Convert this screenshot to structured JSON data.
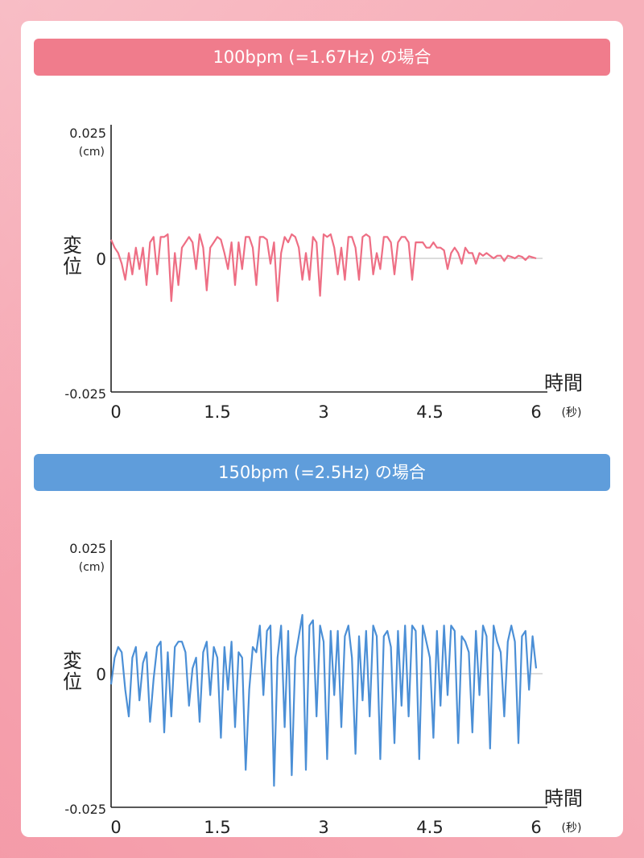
{
  "chart_data": [
    {
      "type": "line",
      "title": "100bpm (=1.67Hz) の場合",
      "ylabel": "変位",
      "yunit": "(cm)",
      "xlabel": "時間",
      "xunit": "(秒)",
      "xlim": [
        0,
        6
      ],
      "ylim": [
        -0.025,
        0.025
      ],
      "xticks": [
        "0",
        "1.5",
        "3",
        "4.5",
        "6"
      ],
      "yticks": [
        "0.025",
        "0",
        "-0.025"
      ],
      "color": "#ee6e84",
      "series": [
        {
          "x": [
            0,
            0.05,
            0.1,
            0.15,
            0.2,
            0.25,
            0.3,
            0.35,
            0.4,
            0.45,
            0.5,
            0.55,
            0.6,
            0.65,
            0.7,
            0.75,
            0.8,
            0.85,
            0.9,
            0.95,
            1.0,
            1.05,
            1.1,
            1.15,
            1.2,
            1.25,
            1.3,
            1.35,
            1.4,
            1.45,
            1.5,
            1.55,
            1.6,
            1.65,
            1.7,
            1.75,
            1.8,
            1.85,
            1.9,
            1.95,
            2.0,
            2.05,
            2.1,
            2.15,
            2.2,
            2.25,
            2.3,
            2.35,
            2.4,
            2.45,
            2.5,
            2.55,
            2.6,
            2.65,
            2.7,
            2.75,
            2.8,
            2.85,
            2.9,
            2.95,
            3.0,
            3.05,
            3.1,
            3.15,
            3.2,
            3.25,
            3.3,
            3.35,
            3.4,
            3.45,
            3.5,
            3.55,
            3.6,
            3.65,
            3.7,
            3.75,
            3.8,
            3.85,
            3.9,
            3.95,
            4.0,
            4.05,
            4.1,
            4.15,
            4.2,
            4.25,
            4.3,
            4.35,
            4.4,
            4.45,
            4.5,
            4.55,
            4.6,
            4.65,
            4.7,
            4.75,
            4.8,
            4.85,
            4.9,
            4.95,
            5.0,
            5.05,
            5.1,
            5.15,
            5.2,
            5.25,
            5.3,
            5.35,
            5.4,
            5.45,
            5.5,
            5.55,
            5.6,
            5.65,
            5.7,
            5.75,
            5.8,
            5.85,
            5.9,
            5.95,
            6.0
          ],
          "y": [
            0.0035,
            0.002,
            0.001,
            -0.001,
            -0.004,
            0.001,
            -0.003,
            0.002,
            -0.002,
            0.002,
            -0.005,
            0.003,
            0.004,
            -0.003,
            0.004,
            0.004,
            0.0045,
            -0.008,
            0.001,
            -0.005,
            0.002,
            0.003,
            0.004,
            0.003,
            -0.002,
            0.0045,
            0.002,
            -0.006,
            0.002,
            0.003,
            0.004,
            0.0035,
            0.001,
            -0.002,
            0.003,
            -0.005,
            0.003,
            -0.002,
            0.004,
            0.004,
            0.002,
            -0.005,
            0.004,
            0.004,
            0.0035,
            -0.001,
            0.003,
            -0.008,
            0.001,
            0.004,
            0.003,
            0.0045,
            0.004,
            0.002,
            -0.004,
            0.001,
            -0.004,
            0.004,
            0.003,
            -0.007,
            0.0045,
            0.004,
            0.0045,
            0.002,
            -0.003,
            0.002,
            -0.004,
            0.004,
            0.004,
            0.002,
            -0.004,
            0.004,
            0.0045,
            0.004,
            -0.003,
            0.001,
            -0.002,
            0.004,
            0.004,
            0.003,
            -0.003,
            0.003,
            0.004,
            0.004,
            0.003,
            -0.004,
            0.003,
            0.003,
            0.003,
            0.002,
            0.002,
            0.003,
            0.002,
            0.002,
            0.0015,
            -0.002,
            0.001,
            0.002,
            0.001,
            -0.001,
            0.002,
            0.001,
            0.001,
            -0.001,
            0.001,
            0.0005,
            0.001,
            0.0005,
            0.0,
            0.0005,
            0.0005,
            -0.0005,
            0.0005,
            0.0003,
            0.0,
            0.0005,
            0.0003,
            -0.0003,
            0.0004,
            0.0002,
            0.0
          ]
        }
      ]
    },
    {
      "type": "line",
      "title": "150bpm (=2.5Hz) の場合",
      "ylabel": "変位",
      "yunit": "(cm)",
      "xlabel": "時間",
      "xunit": "(秒)",
      "xlim": [
        0,
        6
      ],
      "ylim": [
        -0.025,
        0.025
      ],
      "xticks": [
        "0",
        "1.5",
        "3",
        "4.5",
        "6"
      ],
      "yticks": [
        "0.025",
        "0",
        "-0.025"
      ],
      "color": "#4b8fd6",
      "series": [
        {
          "x": [
            0,
            0.05,
            0.1,
            0.15,
            0.2,
            0.25,
            0.3,
            0.35,
            0.4,
            0.45,
            0.5,
            0.55,
            0.6,
            0.65,
            0.7,
            0.75,
            0.8,
            0.85,
            0.9,
            0.95,
            1.0,
            1.05,
            1.1,
            1.15,
            1.2,
            1.25,
            1.3,
            1.35,
            1.4,
            1.45,
            1.5,
            1.55,
            1.6,
            1.65,
            1.7,
            1.75,
            1.8,
            1.85,
            1.9,
            1.95,
            2.0,
            2.05,
            2.1,
            2.15,
            2.2,
            2.25,
            2.3,
            2.35,
            2.4,
            2.45,
            2.5,
            2.55,
            2.6,
            2.65,
            2.7,
            2.75,
            2.8,
            2.85,
            2.9,
            2.95,
            3.0,
            3.05,
            3.1,
            3.15,
            3.2,
            3.25,
            3.3,
            3.35,
            3.4,
            3.45,
            3.5,
            3.55,
            3.6,
            3.65,
            3.7,
            3.75,
            3.8,
            3.85,
            3.9,
            3.95,
            4.0,
            4.05,
            4.1,
            4.15,
            4.2,
            4.25,
            4.3,
            4.35,
            4.4,
            4.45,
            4.5,
            4.55,
            4.6,
            4.65,
            4.7,
            4.75,
            4.8,
            4.85,
            4.9,
            4.95,
            5.0,
            5.05,
            5.1,
            5.15,
            5.2,
            5.25,
            5.3,
            5.35,
            5.4,
            5.45,
            5.5,
            5.55,
            5.6,
            5.65,
            5.7,
            5.75,
            5.8,
            5.85,
            5.9,
            5.95,
            6.0
          ],
          "y": [
            -0.002,
            0.003,
            0.005,
            0.004,
            -0.003,
            -0.008,
            0.003,
            0.005,
            -0.005,
            0.002,
            0.004,
            -0.009,
            -0.001,
            0.005,
            0.006,
            -0.011,
            0.004,
            -0.008,
            0.005,
            0.006,
            0.006,
            0.004,
            -0.006,
            0.001,
            0.003,
            -0.009,
            0.004,
            0.006,
            -0.004,
            0.005,
            0.003,
            -0.012,
            0.005,
            -0.003,
            0.006,
            -0.01,
            0.004,
            0.003,
            -0.018,
            -0.003,
            0.005,
            0.004,
            0.009,
            -0.004,
            0.008,
            0.009,
            -0.021,
            0.003,
            0.009,
            -0.01,
            0.008,
            -0.019,
            0.003,
            0.007,
            0.011,
            -0.018,
            0.009,
            0.01,
            -0.008,
            0.009,
            0.006,
            -0.016,
            0.008,
            -0.004,
            0.008,
            -0.01,
            0.007,
            0.009,
            0.003,
            -0.015,
            0.007,
            -0.005,
            0.008,
            -0.008,
            0.009,
            0.007,
            -0.016,
            0.007,
            0.008,
            0.005,
            -0.013,
            0.008,
            -0.006,
            0.009,
            -0.008,
            0.009,
            0.008,
            -0.016,
            0.009,
            0.006,
            0.003,
            -0.012,
            0.008,
            -0.006,
            0.009,
            -0.004,
            0.009,
            0.008,
            -0.013,
            0.007,
            0.006,
            0.004,
            -0.011,
            0.008,
            -0.004,
            0.009,
            0.007,
            -0.014,
            0.009,
            0.006,
            0.004,
            -0.008,
            0.006,
            0.009,
            0.006,
            -0.013,
            0.007,
            0.008,
            -0.003,
            0.007,
            0.001
          ]
        }
      ]
    }
  ]
}
